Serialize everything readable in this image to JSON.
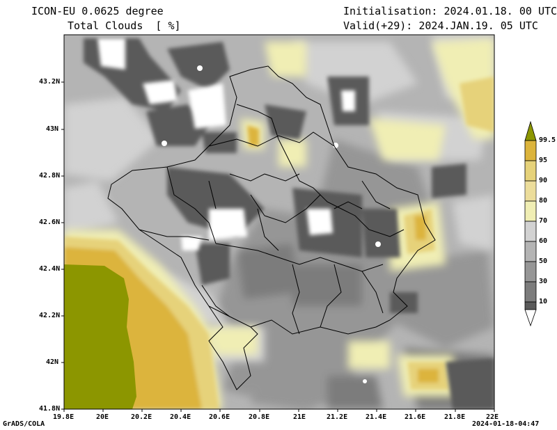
{
  "header": {
    "model_line": "ICON-EU 0.0625 degree",
    "field_line": "Total Clouds  [ %]",
    "init_line": "Initialisation: 2024.01.18. 00 UTC",
    "valid_line": "Valid(+29): 2024.JAN.19. 05 UTC"
  },
  "axes": {
    "lat_ticks": [
      "43.2N",
      "43N",
      "42.8N",
      "42.6N",
      "42.4N",
      "42.2N",
      "42N",
      "41.8N"
    ],
    "lon_ticks": [
      "19.8E",
      "20E",
      "20.2E",
      "20.4E",
      "20.6E",
      "20.8E",
      "21E",
      "21.2E",
      "21.4E",
      "21.6E",
      "21.8E",
      "22E"
    ]
  },
  "colorbar": {
    "labels": [
      "99.5",
      "95",
      "90",
      "80",
      "70",
      "60",
      "50",
      "30",
      "10"
    ],
    "colors": {
      "lt10": "#ffffff",
      "10_30": "#5a5a5a",
      "30_50": "#7c7c7c",
      "50_60": "#969696",
      "60_70": "#b4b4b4",
      "70_80": "#d2d2d2",
      "80_90": "#f0eeb4",
      "90_95": "#e6d27a",
      "95_99": "#dcb43c",
      "gt99": "#8c9600"
    }
  },
  "footer": {
    "left": "GrADS/COLA",
    "right": "2024-01-18-04:47"
  }
}
